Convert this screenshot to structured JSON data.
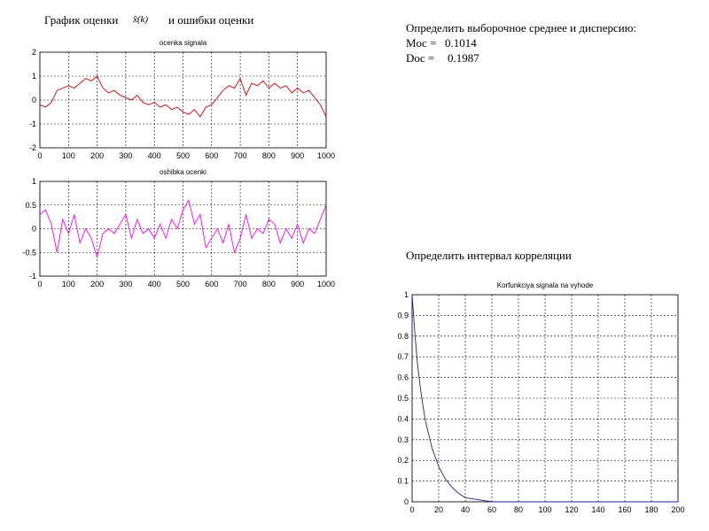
{
  "header": {
    "title_left": "График оценки",
    "formula": "x̂(k)",
    "title_right": "и ошибки оценки"
  },
  "stats": {
    "heading": "Определить выборочное среднее и дисперсию:",
    "moc_label": "Moc =",
    "moc_value": 0.1014,
    "doc_label": "Doc =",
    "doc_value": 0.1987
  },
  "corr_heading": "Определить интервал корреляции",
  "chart_data": [
    {
      "type": "line",
      "title": "ocenka signala",
      "color": "#d40000",
      "grid": true,
      "x": [
        0,
        20,
        40,
        60,
        80,
        100,
        120,
        140,
        160,
        180,
        200,
        220,
        240,
        260,
        280,
        300,
        320,
        340,
        360,
        380,
        400,
        420,
        440,
        460,
        480,
        500,
        520,
        540,
        560,
        580,
        600,
        620,
        640,
        660,
        680,
        700,
        720,
        740,
        760,
        780,
        800,
        820,
        840,
        860,
        880,
        900,
        920,
        940,
        960,
        980,
        1000
      ],
      "values": [
        -0.2,
        -0.3,
        -0.1,
        0.4,
        0.5,
        0.6,
        0.5,
        0.7,
        0.9,
        0.8,
        1.0,
        0.5,
        0.3,
        0.4,
        0.2,
        0.1,
        0.0,
        0.2,
        -0.1,
        -0.2,
        -0.1,
        -0.3,
        -0.2,
        -0.4,
        -0.3,
        -0.5,
        -0.6,
        -0.4,
        -0.7,
        -0.3,
        -0.2,
        0.1,
        0.4,
        0.6,
        0.5,
        0.9,
        0.2,
        0.7,
        0.6,
        0.8,
        0.5,
        0.7,
        0.5,
        0.6,
        0.3,
        0.5,
        0.3,
        0.4,
        0.1,
        -0.2,
        -0.7
      ],
      "xlim": [
        0,
        1000
      ],
      "xticks": [
        0,
        100,
        200,
        300,
        400,
        500,
        600,
        700,
        800,
        900,
        1000
      ],
      "ylim": [
        -2,
        2
      ],
      "yticks": [
        -2,
        -1,
        0,
        1,
        2
      ]
    },
    {
      "type": "line",
      "title": "oshibka ocenki",
      "color": "#ff00ff",
      "grid": true,
      "x": [
        0,
        20,
        40,
        60,
        80,
        100,
        120,
        140,
        160,
        180,
        200,
        220,
        240,
        260,
        280,
        300,
        320,
        340,
        360,
        380,
        400,
        420,
        440,
        460,
        480,
        500,
        520,
        540,
        560,
        580,
        600,
        620,
        640,
        660,
        680,
        700,
        720,
        740,
        760,
        780,
        800,
        820,
        840,
        860,
        880,
        900,
        920,
        940,
        960,
        980,
        1000
      ],
      "values": [
        0.3,
        0.4,
        0.1,
        -0.5,
        0.2,
        -0.1,
        0.3,
        -0.3,
        0.0,
        -0.2,
        -0.6,
        -0.1,
        0.0,
        -0.1,
        0.1,
        0.3,
        -0.2,
        0.2,
        -0.1,
        0.0,
        -0.2,
        0.1,
        -0.2,
        0.2,
        0.0,
        0.4,
        0.6,
        0.1,
        0.3,
        -0.4,
        -0.2,
        0.0,
        -0.3,
        0.1,
        -0.5,
        -0.2,
        0.3,
        -0.2,
        0.0,
        -0.1,
        0.2,
        0.1,
        -0.3,
        0.0,
        -0.2,
        0.1,
        -0.3,
        0.0,
        -0.1,
        0.2,
        0.5
      ],
      "xlim": [
        0,
        1000
      ],
      "xticks": [
        0,
        100,
        200,
        300,
        400,
        500,
        600,
        700,
        800,
        900,
        1000
      ],
      "ylim": [
        -1,
        1
      ],
      "yticks": [
        -1,
        -0.5,
        0,
        0.5,
        1
      ]
    },
    {
      "type": "line",
      "title": "Korfunkciya signala na vyhode",
      "color": "#1f1fa0",
      "grid": true,
      "x": [
        0,
        2,
        4,
        6,
        8,
        10,
        15,
        20,
        25,
        30,
        35,
        40,
        50,
        60,
        80,
        100,
        120,
        140,
        160,
        180,
        200
      ],
      "values": [
        1,
        0.82,
        0.67,
        0.56,
        0.47,
        0.39,
        0.26,
        0.17,
        0.11,
        0.07,
        0.04,
        0.02,
        0.01,
        0,
        0,
        0,
        0,
        0,
        0,
        0,
        0
      ],
      "xlim": [
        0,
        200
      ],
      "xticks": [
        0,
        20,
        40,
        60,
        80,
        100,
        120,
        140,
        160,
        180,
        200
      ],
      "ylim": [
        0,
        1
      ],
      "yticks": [
        0,
        0.1,
        0.2,
        0.3,
        0.4,
        0.5,
        0.6,
        0.7,
        0.8,
        0.9,
        1
      ]
    }
  ]
}
